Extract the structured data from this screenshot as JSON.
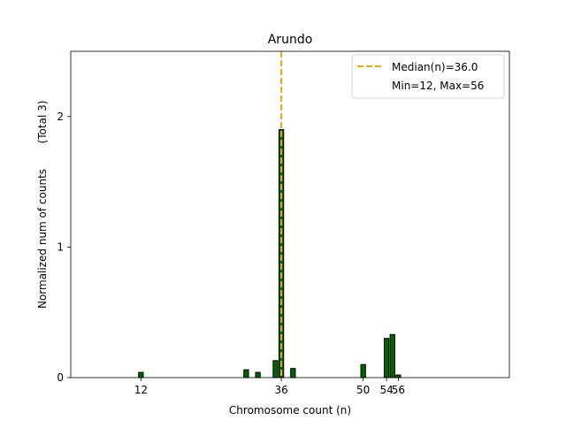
{
  "chart_data": {
    "type": "bar",
    "title": "Arundo",
    "xlabel": "Chromosome count (n)",
    "ylabel": "Normalized num of counts",
    "ylabel_note": "(Total 3)",
    "xlim": [
      0,
      75
    ],
    "ylim": [
      0,
      2.5
    ],
    "xticks": [
      12,
      36,
      50,
      54,
      56
    ],
    "yticks": [
      0,
      1,
      2
    ],
    "bar_color": "#006400",
    "bar_edge_color": "#000000",
    "median_color": "#f0a800",
    "bars": [
      {
        "x": 12,
        "value": 0.04
      },
      {
        "x": 30,
        "value": 0.06
      },
      {
        "x": 32,
        "value": 0.04
      },
      {
        "x": 35,
        "value": 0.13
      },
      {
        "x": 36,
        "value": 1.9
      },
      {
        "x": 38,
        "value": 0.07
      },
      {
        "x": 50,
        "value": 0.1
      },
      {
        "x": 54,
        "value": 0.3
      },
      {
        "x": 55,
        "value": 0.33
      },
      {
        "x": 56,
        "value": 0.02
      }
    ],
    "median": 36,
    "legend": {
      "position": "top-right",
      "entries": [
        "Median(n)=36.0",
        "Min=12, Max=56"
      ]
    }
  }
}
